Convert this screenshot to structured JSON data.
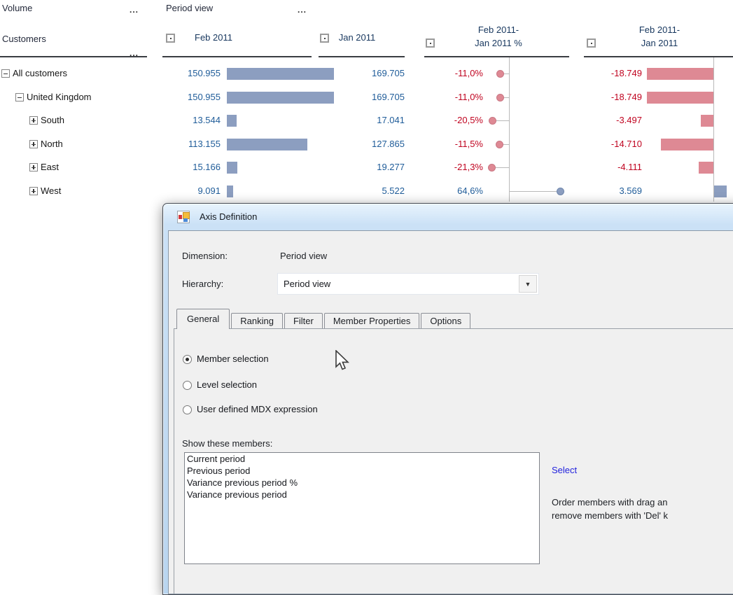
{
  "grid": {
    "measure_label": "Volume",
    "col_dim_label": "Period view",
    "row_dim_label": "Customers",
    "more_glyph": "...",
    "columns": [
      {
        "lines": [
          "Feb 2011"
        ]
      },
      {
        "lines": [
          "Jan 2011"
        ]
      },
      {
        "lines": [
          "Feb 2011-",
          "Jan 2011 %"
        ]
      },
      {
        "lines": [
          "Feb 2011-",
          "Jan 2011"
        ]
      }
    ],
    "rows": [
      {
        "label": "All customers",
        "level": 0,
        "expander": "minus",
        "feb": "150.955",
        "feb_val": 150955,
        "jan": "169.705",
        "pct": "-11,0%",
        "pct_val": -11.0,
        "var": "-18.749",
        "var_val": -18749
      },
      {
        "label": "United Kingdom",
        "level": 1,
        "expander": "minus",
        "feb": "150.955",
        "feb_val": 150955,
        "jan": "169.705",
        "pct": "-11,0%",
        "pct_val": -11.0,
        "var": "-18.749",
        "var_val": -18749
      },
      {
        "label": "South",
        "level": 2,
        "expander": "plus",
        "feb": "13.544",
        "feb_val": 13544,
        "jan": "17.041",
        "pct": "-20,5%",
        "pct_val": -20.5,
        "var": "-3.497",
        "var_val": -3497
      },
      {
        "label": "North",
        "level": 2,
        "expander": "plus",
        "feb": "113.155",
        "feb_val": 113155,
        "jan": "127.865",
        "pct": "-11,5%",
        "pct_val": -11.5,
        "var": "-14.710",
        "var_val": -14710
      },
      {
        "label": "East",
        "level": 2,
        "expander": "plus",
        "feb": "15.166",
        "feb_val": 15166,
        "jan": "19.277",
        "pct": "-21,3%",
        "pct_val": -21.3,
        "var": "-4.111",
        "var_val": -4111
      },
      {
        "label": "West",
        "level": 2,
        "expander": "plus",
        "feb": "9.091",
        "feb_val": 9091,
        "jan": "5.522",
        "pct": "64,6%",
        "pct_val": 64.6,
        "var": "3.569",
        "var_val": 3569
      }
    ]
  },
  "dialog": {
    "title": "Axis Definition",
    "dimension_label": "Dimension:",
    "dimension_value": "Period view",
    "hierarchy_label": "Hierarchy:",
    "hierarchy_value": "Period view",
    "tabs": [
      "General",
      "Ranking",
      "Filter",
      "Member Properties",
      "Options"
    ],
    "active_tab": "General",
    "radio_options": [
      "Member selection",
      "Level selection",
      "User defined MDX expression"
    ],
    "selected_radio": "Member selection",
    "members_label": "Show these members:",
    "members": [
      "Current period",
      "Previous period",
      "Variance previous period %",
      "Variance previous period"
    ],
    "select_link": "Select",
    "help_lines": [
      "Order members with drag an",
      "remove members with 'Del' k"
    ]
  },
  "colors": {
    "bar_positive": "#8C9EC0",
    "bar_negative": "#DE8994",
    "value_positive": "#1F5C99",
    "value_negative": "#C00420",
    "axis_gray": "#B9B9B9",
    "link_blue": "#2222DD"
  }
}
